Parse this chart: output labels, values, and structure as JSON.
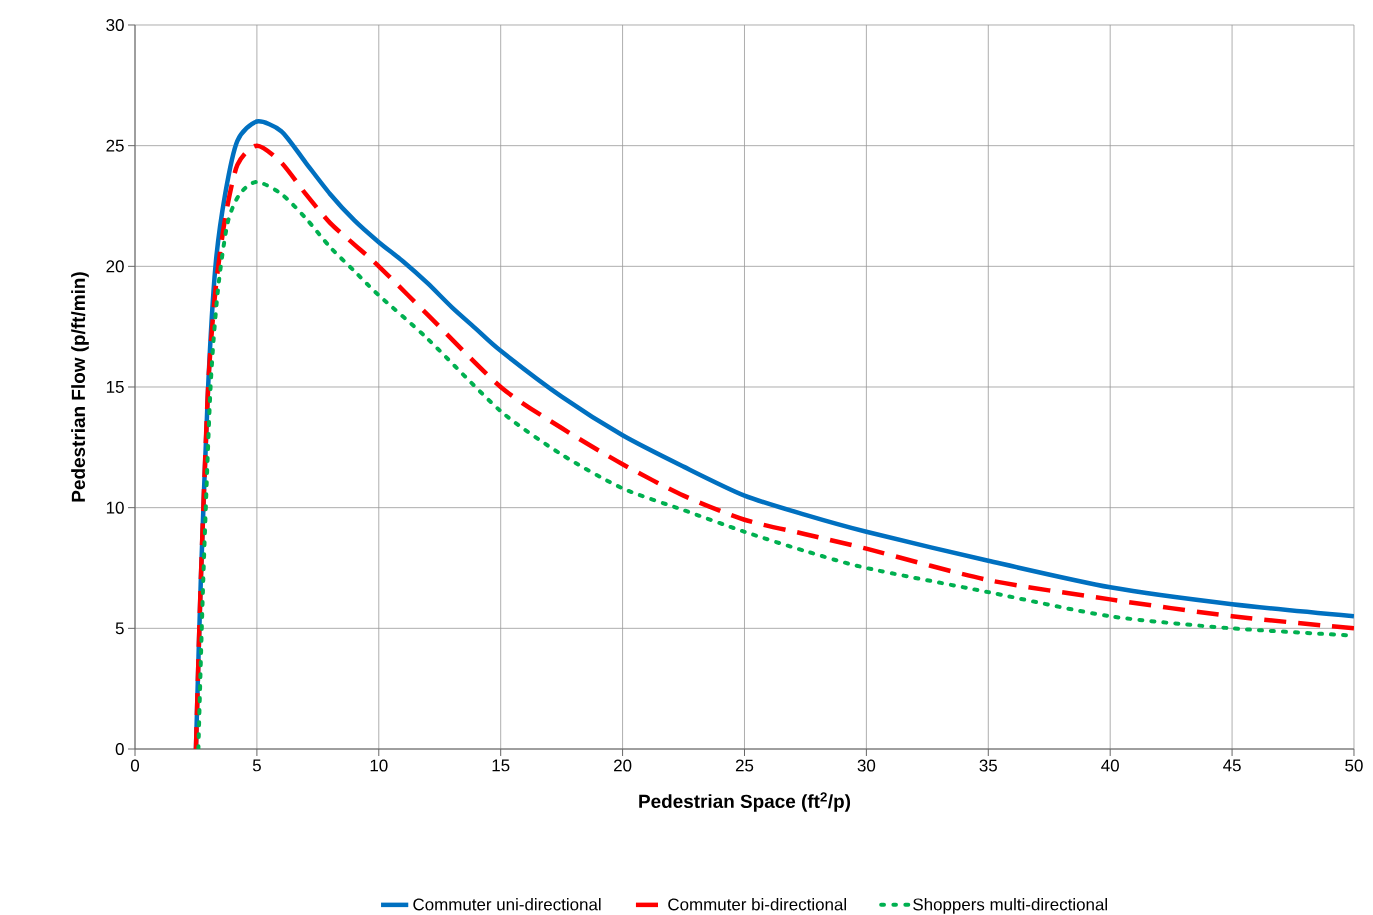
{
  "chart_data": {
    "type": "line",
    "xlabel": "Pedestrian Space (ft$^{2}$/p)",
    "ylabel": "Pedestrian Flow (p/ft/min)",
    "xlim": [
      0,
      50
    ],
    "ylim": [
      0,
      30
    ],
    "xticks": [
      0,
      5,
      10,
      15,
      20,
      25,
      30,
      35,
      40,
      45,
      50
    ],
    "yticks": [
      0,
      5,
      10,
      15,
      20,
      25,
      30
    ],
    "grid": true,
    "legend": "bottom",
    "series": [
      {
        "name": "Commuter uni-directional",
        "color": "#0070c0",
        "line_style": "solid",
        "x": [
          2.5,
          2.7,
          3,
          3.3,
          3.7,
          4.2,
          5,
          6,
          7,
          8,
          9,
          10,
          11,
          12,
          13,
          14,
          15,
          17.5,
          20,
          22.5,
          25,
          27.5,
          30,
          35,
          40,
          45,
          50
        ],
        "values": [
          0,
          7,
          15,
          20,
          23,
          25.2,
          26,
          25.6,
          24.3,
          23,
          21.9,
          21,
          20.2,
          19.3,
          18.3,
          17.4,
          16.5,
          14.6,
          13,
          11.7,
          10.5,
          9.7,
          9,
          7.8,
          6.7,
          6,
          5.5
        ]
      },
      {
        "name": "Commuter bi-directional",
        "color": "#ff0000",
        "line_style": "dashed",
        "x": [
          2.5,
          2.7,
          3,
          3.3,
          3.7,
          4.2,
          5,
          6,
          7,
          8,
          9,
          10,
          12,
          15,
          17.5,
          20,
          22.5,
          25,
          27.5,
          30,
          35,
          40,
          45,
          50
        ],
        "values": [
          0,
          7,
          15,
          19,
          22,
          24.2,
          25,
          24.3,
          23,
          21.8,
          20.9,
          20,
          18,
          15,
          13.3,
          11.8,
          10.5,
          9.5,
          8.9,
          8.3,
          7,
          6.2,
          5.5,
          5
        ]
      },
      {
        "name": "Shoppers multi-directional",
        "color": "#00b050",
        "line_style": "dotted",
        "x": [
          2.6,
          2.8,
          3.1,
          3.4,
          3.8,
          4.3,
          5,
          6,
          7,
          8,
          9,
          10,
          12,
          15,
          17.5,
          20,
          22.5,
          25,
          27.5,
          30,
          35,
          40,
          45,
          50
        ],
        "values": [
          0,
          7,
          15,
          19,
          21.8,
          23,
          23.5,
          23,
          22,
          20.8,
          19.8,
          18.8,
          17,
          14,
          12.2,
          10.8,
          9.9,
          9,
          8.2,
          7.5,
          6.5,
          5.5,
          5,
          4.7
        ]
      }
    ]
  }
}
